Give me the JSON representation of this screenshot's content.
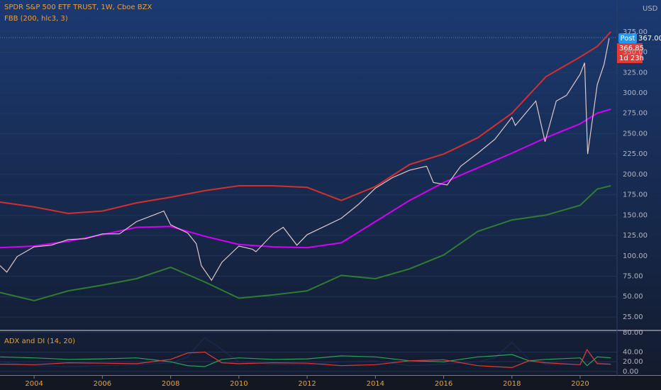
{
  "chart_data": [
    {
      "type": "line",
      "title": "SPDR S&P 500 ETF TRUST, 1W, Cboe BZX",
      "subtitle": "FBB (200, hlc3, 3)",
      "y_axis_label": "USD",
      "annotations": [
        "Post",
        "367.00",
        "366.85",
        "1d 23h"
      ],
      "xlim": [
        2003,
        2021.08
      ],
      "xticks": [
        2004,
        2006,
        2008,
        2010,
        2012,
        2014,
        2016,
        2018,
        2020
      ],
      "ylim": [
        9.3,
        414
      ],
      "yticks": [
        {
          "value": 25,
          "label": "25.00"
        },
        {
          "value": 50,
          "label": "50.00"
        },
        {
          "value": 75,
          "label": "75.00"
        },
        {
          "value": 100,
          "label": "100.00"
        },
        {
          "value": 125,
          "label": "125.00"
        },
        {
          "value": 150,
          "label": "150.00"
        },
        {
          "value": 175,
          "label": "175.00"
        },
        {
          "value": 200,
          "label": "200.00"
        },
        {
          "value": 225,
          "label": "225.00"
        },
        {
          "value": 250,
          "label": "250.00"
        },
        {
          "value": 275,
          "label": "275.00"
        },
        {
          "value": 300,
          "label": "300.00"
        },
        {
          "value": 325,
          "label": "325.00"
        },
        {
          "value": 350,
          "label": "350.00"
        },
        {
          "value": 375,
          "label": "375.00"
        }
      ],
      "grid": true,
      "series": [
        {
          "color": "#d32f2f",
          "x": [
            2003,
            2004,
            2005,
            2006,
            2007,
            2008,
            2009,
            2010,
            2011,
            2012,
            2013,
            2014,
            2015,
            2016,
            2017,
            2018,
            2019,
            2020,
            2020.5,
            2020.9
          ],
          "values": [
            166,
            160,
            152,
            155,
            165,
            172,
            180,
            186,
            186,
            184,
            168,
            185,
            212,
            225,
            245,
            275,
            320,
            344,
            357,
            375
          ]
        },
        {
          "color": "#d500f9",
          "x": [
            2003,
            2004,
            2005,
            2006,
            2007,
            2008,
            2009,
            2010,
            2011,
            2012,
            2013,
            2014,
            2015,
            2016,
            2017,
            2018,
            2019,
            2020,
            2020.5,
            2020.9
          ],
          "values": [
            110,
            112,
            118,
            126,
            135,
            136,
            124,
            114,
            111,
            110,
            116,
            142,
            168,
            190,
            208,
            226,
            245,
            262,
            275,
            280
          ]
        },
        {
          "color": "#2e7d32",
          "x": [
            2003,
            2004,
            2005,
            2006,
            2007,
            2008,
            2009,
            2010,
            2011,
            2012,
            2013,
            2014,
            2015,
            2016,
            2017,
            2018,
            2019,
            2020,
            2020.5,
            2020.9
          ],
          "values": [
            55,
            45,
            57,
            64,
            72,
            86,
            68,
            48,
            52,
            57,
            76,
            72,
            84,
            101,
            130,
            144,
            150,
            162,
            182,
            186
          ]
        },
        {
          "color": "#e0c8c8",
          "x": [
            2003,
            2003.2,
            2003.5,
            2004,
            2004.5,
            2005,
            2005.5,
            2006,
            2006.5,
            2007,
            2007.5,
            2007.8,
            2008,
            2008.5,
            2008.75,
            2008.9,
            2009.2,
            2009.5,
            2010,
            2010.4,
            2010.5,
            2011,
            2011.3,
            2011.7,
            2012,
            2012.5,
            2013,
            2013.5,
            2014,
            2014.5,
            2015,
            2015.5,
            2015.7,
            2016.1,
            2016.5,
            2017,
            2017.5,
            2018,
            2018.1,
            2018.7,
            2018.97,
            2019.3,
            2019.6,
            2020,
            2020.13,
            2020.22,
            2020.5,
            2020.7,
            2020.85
          ],
          "values": [
            88,
            80,
            99,
            111,
            113,
            120,
            121,
            127,
            127,
            142,
            150,
            155,
            138,
            128,
            115,
            88,
            70,
            92,
            112,
            108,
            105,
            127,
            135,
            113,
            126,
            136,
            146,
            163,
            183,
            196,
            205,
            210,
            190,
            187,
            210,
            226,
            243,
            270,
            260,
            290,
            240,
            290,
            297,
            323,
            337,
            225,
            310,
            335,
            367
          ]
        }
      ]
    },
    {
      "type": "line",
      "title": "ADX and DI (14, 20)",
      "xlim": [
        2003,
        2021.08
      ],
      "ylim": [
        -8.9,
        81.5
      ],
      "yticks": [
        {
          "value": 0,
          "label": "0.00"
        },
        {
          "value": 20,
          "label": "20.00"
        },
        {
          "value": 40,
          "label": "40.00"
        },
        {
          "value": 80,
          "label": "80.00"
        }
      ],
      "series": [
        {
          "color": "#1b2a55",
          "x": [
            2003,
            2004,
            2005,
            2006,
            2007,
            2008,
            2008.5,
            2009,
            2009.5,
            2010,
            2011,
            2012,
            2013,
            2014,
            2015,
            2016,
            2017,
            2017.5,
            2018,
            2018.5,
            2019,
            2020,
            2020.2,
            2020.5,
            2020.9
          ],
          "values": [
            20,
            12,
            10,
            12,
            14,
            18,
            30,
            70,
            45,
            20,
            15,
            14,
            20,
            22,
            12,
            15,
            20,
            28,
            60,
            25,
            15,
            14,
            40,
            18,
            15
          ]
        },
        {
          "color": "#26a65b",
          "x": [
            2003,
            2004,
            2005,
            2006,
            2007,
            2008,
            2008.5,
            2009,
            2009.5,
            2010,
            2011,
            2012,
            2013,
            2014,
            2015,
            2016,
            2017,
            2017.5,
            2018,
            2018.5,
            2019,
            2020,
            2020.2,
            2020.5,
            2020.9
          ],
          "values": [
            30,
            28,
            25,
            26,
            28,
            20,
            12,
            10,
            25,
            28,
            25,
            26,
            32,
            30,
            22,
            20,
            30,
            32,
            35,
            22,
            25,
            28,
            12,
            30,
            28
          ]
        },
        {
          "color": "#e53935",
          "x": [
            2003,
            2004,
            2005,
            2006,
            2007,
            2008,
            2008.5,
            2009,
            2009.5,
            2010,
            2011,
            2012,
            2013,
            2014,
            2015,
            2016,
            2017,
            2017.5,
            2018,
            2018.5,
            2019,
            2020,
            2020.2,
            2020.5,
            2020.9
          ],
          "values": [
            15,
            14,
            18,
            17,
            16,
            25,
            38,
            40,
            18,
            16,
            18,
            17,
            12,
            14,
            22,
            24,
            12,
            10,
            8,
            22,
            18,
            14,
            45,
            16,
            15
          ]
        }
      ]
    }
  ]
}
